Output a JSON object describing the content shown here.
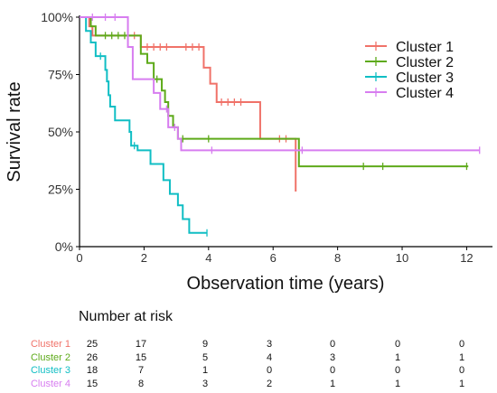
{
  "chart_data": {
    "type": "line",
    "subtype": "kaplan-meier",
    "title": "",
    "xlabel": "Observation time (years)",
    "ylabel": "Survival rate",
    "xlim": [
      0,
      12.8
    ],
    "ylim": [
      0,
      1
    ],
    "xticks": [
      0,
      2,
      4,
      6,
      8,
      10,
      12
    ],
    "yticks": [
      0,
      0.25,
      0.5,
      0.75,
      1.0
    ],
    "ytick_labels": [
      "0%",
      "25%",
      "50%",
      "75%",
      "100%"
    ],
    "grid": false,
    "legend_position": "top-right",
    "series": [
      {
        "name": "Cluster 1",
        "color": "#F07269",
        "steps": [
          [
            0,
            1.0
          ],
          [
            0.3,
            0.96
          ],
          [
            0.4,
            0.92
          ],
          [
            1.9,
            0.87
          ],
          [
            3.85,
            0.78
          ],
          [
            4.05,
            0.71
          ],
          [
            4.25,
            0.63
          ],
          [
            5.6,
            0.47
          ],
          [
            6.7,
            0.24
          ]
        ],
        "end": 6.7,
        "censors": [
          [
            1.5,
            0.92
          ],
          [
            1.7,
            0.92
          ],
          [
            2.1,
            0.87
          ],
          [
            2.3,
            0.87
          ],
          [
            2.5,
            0.87
          ],
          [
            2.7,
            0.87
          ],
          [
            3.3,
            0.87
          ],
          [
            3.5,
            0.87
          ],
          [
            3.7,
            0.87
          ],
          [
            4.4,
            0.63
          ],
          [
            4.6,
            0.63
          ],
          [
            4.8,
            0.63
          ],
          [
            5.0,
            0.63
          ],
          [
            6.2,
            0.47
          ],
          [
            6.4,
            0.47
          ]
        ]
      },
      {
        "name": "Cluster 2",
        "color": "#5EAA1A",
        "steps": [
          [
            0,
            1.0
          ],
          [
            0.35,
            0.96
          ],
          [
            0.5,
            0.92
          ],
          [
            1.9,
            0.84
          ],
          [
            2.1,
            0.8
          ],
          [
            2.3,
            0.73
          ],
          [
            2.55,
            0.68
          ],
          [
            2.65,
            0.63
          ],
          [
            2.75,
            0.57
          ],
          [
            2.9,
            0.52
          ],
          [
            3.05,
            0.47
          ],
          [
            6.8,
            0.35
          ]
        ],
        "end": 12.05,
        "censors": [
          [
            0.8,
            0.92
          ],
          [
            1.0,
            0.92
          ],
          [
            1.2,
            0.92
          ],
          [
            1.4,
            0.92
          ],
          [
            2.4,
            0.73
          ],
          [
            3.2,
            0.47
          ],
          [
            4.0,
            0.47
          ],
          [
            8.8,
            0.35
          ],
          [
            9.4,
            0.35
          ],
          [
            12.0,
            0.35
          ]
        ]
      },
      {
        "name": "Cluster 3",
        "color": "#10BEC4",
        "steps": [
          [
            0,
            1.0
          ],
          [
            0.2,
            0.94
          ],
          [
            0.35,
            0.89
          ],
          [
            0.5,
            0.83
          ],
          [
            0.8,
            0.77
          ],
          [
            0.85,
            0.72
          ],
          [
            0.9,
            0.66
          ],
          [
            0.95,
            0.61
          ],
          [
            1.1,
            0.55
          ],
          [
            1.55,
            0.5
          ],
          [
            1.6,
            0.44
          ],
          [
            1.8,
            0.42
          ],
          [
            2.2,
            0.36
          ],
          [
            2.6,
            0.29
          ],
          [
            2.8,
            0.23
          ],
          [
            3.05,
            0.18
          ],
          [
            3.2,
            0.12
          ],
          [
            3.4,
            0.06
          ]
        ],
        "end": 3.95,
        "censors": [
          [
            0.65,
            0.83
          ],
          [
            1.7,
            0.44
          ],
          [
            3.95,
            0.06
          ]
        ]
      },
      {
        "name": "Cluster 4",
        "color": "#D77DF0",
        "steps": [
          [
            0,
            1.0
          ],
          [
            1.5,
            0.87
          ],
          [
            1.65,
            0.73
          ],
          [
            2.3,
            0.67
          ],
          [
            2.5,
            0.6
          ],
          [
            2.75,
            0.52
          ],
          [
            3.05,
            0.47
          ],
          [
            3.15,
            0.42
          ]
        ],
        "end": 12.4,
        "censors": [
          [
            0.4,
            1.0
          ],
          [
            0.8,
            1.0
          ],
          [
            1.1,
            1.0
          ],
          [
            2.7,
            0.6
          ],
          [
            2.95,
            0.52
          ],
          [
            4.1,
            0.42
          ],
          [
            6.9,
            0.42
          ],
          [
            12.4,
            0.42
          ]
        ]
      }
    ],
    "risk_table": {
      "title": "Number at risk",
      "times": [
        0,
        2,
        4,
        6,
        8,
        10,
        12
      ],
      "rows": [
        {
          "name": "Cluster 1",
          "color": "#F07269",
          "counts": [
            25,
            17,
            9,
            3,
            0,
            0,
            0
          ]
        },
        {
          "name": "Cluster 2",
          "color": "#5EAA1A",
          "counts": [
            26,
            15,
            5,
            4,
            3,
            1,
            1
          ]
        },
        {
          "name": "Cluster 3",
          "color": "#10BEC4",
          "counts": [
            18,
            7,
            1,
            0,
            0,
            0,
            0
          ]
        },
        {
          "name": "Cluster 4",
          "color": "#D77DF0",
          "counts": [
            15,
            8,
            3,
            2,
            1,
            1,
            1
          ]
        }
      ]
    }
  }
}
